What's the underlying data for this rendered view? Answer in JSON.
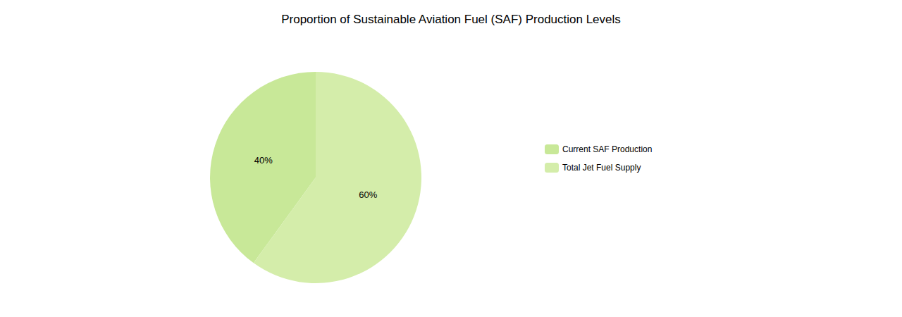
{
  "chart_data": {
    "type": "pie",
    "title": "Proportion of Sustainable Aviation Fuel (SAF) Production Levels",
    "categories": [
      "Current SAF Production",
      "Total Jet Fuel Supply"
    ],
    "values": [
      40,
      60
    ],
    "value_labels": [
      "40%",
      "60%"
    ],
    "colors": [
      "#c8e898",
      "#d4edaa"
    ],
    "data_labels": true,
    "legend": "right"
  }
}
